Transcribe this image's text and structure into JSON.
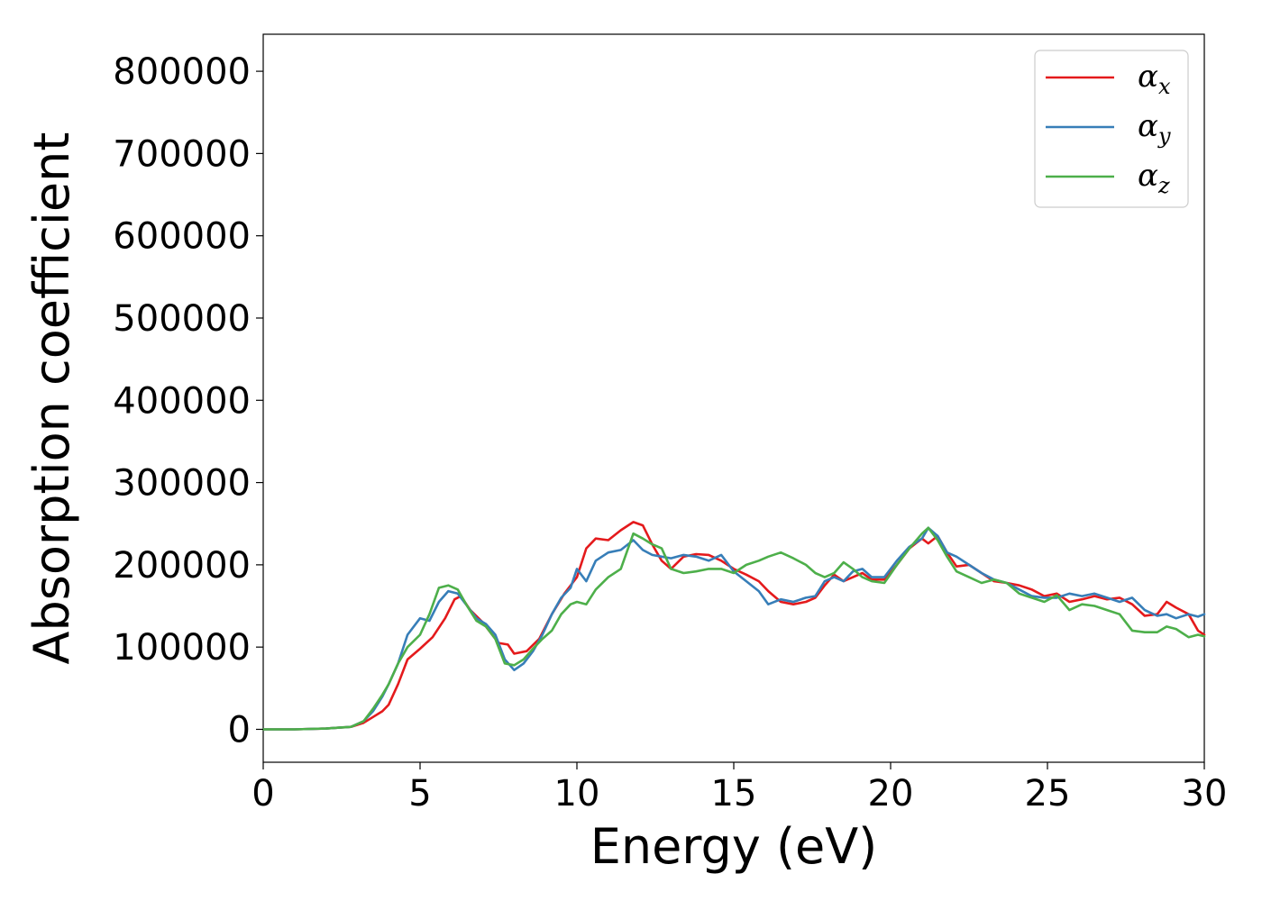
{
  "chart_data": {
    "type": "line",
    "title": "",
    "xlabel": "Energy (eV)",
    "ylabel": "Absorption coefficient",
    "xlim": [
      0,
      30
    ],
    "ylim": [
      -40000,
      845000
    ],
    "xticks": [
      "0",
      "5",
      "10",
      "15",
      "20",
      "25",
      "30"
    ],
    "yticks": [
      "0",
      "100000",
      "200000",
      "300000",
      "400000",
      "500000",
      "600000",
      "700000",
      "800000"
    ],
    "grid": false,
    "legend_position": "top-right",
    "series": [
      {
        "name_base": "α",
        "name_sub": "x",
        "color": "#e41a1c",
        "x": [
          0,
          1,
          2,
          2.8,
          3.2,
          3.5,
          3.8,
          4.0,
          4.3,
          4.6,
          5.0,
          5.4,
          5.8,
          6.1,
          6.3,
          6.6,
          7.0,
          7.5,
          7.8,
          8.0,
          8.4,
          8.8,
          9.2,
          9.6,
          10.0,
          10.3,
          10.6,
          11.0,
          11.4,
          11.8,
          12.1,
          12.4,
          12.7,
          13.0,
          13.4,
          13.8,
          14.2,
          14.6,
          15.0,
          15.4,
          15.8,
          16.1,
          16.5,
          16.9,
          17.3,
          17.6,
          17.9,
          18.2,
          18.5,
          18.8,
          19.1,
          19.4,
          19.8,
          20.2,
          20.6,
          21.0,
          21.2,
          21.5,
          21.8,
          22.1,
          22.5,
          22.9,
          23.3,
          23.7,
          24.1,
          24.5,
          24.9,
          25.3,
          25.7,
          26.1,
          26.5,
          26.9,
          27.3,
          27.7,
          28.1,
          28.5,
          28.8,
          29.1,
          29.5,
          29.8,
          30
        ],
        "y": [
          0,
          0,
          1000,
          3000,
          8000,
          15000,
          22000,
          30000,
          55000,
          85000,
          98000,
          112000,
          135000,
          158000,
          162000,
          145000,
          130000,
          105000,
          103000,
          92000,
          95000,
          110000,
          140000,
          165000,
          185000,
          220000,
          232000,
          230000,
          242000,
          252000,
          248000,
          225000,
          205000,
          195000,
          210000,
          213000,
          212000,
          205000,
          195000,
          188000,
          180000,
          168000,
          155000,
          152000,
          155000,
          160000,
          175000,
          188000,
          180000,
          185000,
          190000,
          182000,
          182000,
          200000,
          220000,
          232000,
          226000,
          235000,
          215000,
          198000,
          200000,
          190000,
          180000,
          178000,
          175000,
          170000,
          162000,
          165000,
          155000,
          158000,
          162000,
          158000,
          160000,
          152000,
          138000,
          140000,
          155000,
          148000,
          140000,
          120000,
          115000
        ]
      },
      {
        "name_base": "α",
        "name_sub": "y",
        "color": "#377eb8",
        "x": [
          0,
          1,
          2,
          2.8,
          3.2,
          3.5,
          3.8,
          4.0,
          4.3,
          4.6,
          5.0,
          5.3,
          5.6,
          5.9,
          6.2,
          6.5,
          6.8,
          7.1,
          7.4,
          7.7,
          8.0,
          8.3,
          8.6,
          8.9,
          9.2,
          9.5,
          9.8,
          10.0,
          10.3,
          10.6,
          11.0,
          11.4,
          11.8,
          12.1,
          12.4,
          12.7,
          13.0,
          13.4,
          13.8,
          14.2,
          14.6,
          15.0,
          15.4,
          15.8,
          16.1,
          16.5,
          16.9,
          17.3,
          17.6,
          17.9,
          18.2,
          18.5,
          18.8,
          19.1,
          19.4,
          19.8,
          20.2,
          20.6,
          21.0,
          21.2,
          21.5,
          21.8,
          22.1,
          22.5,
          22.9,
          23.3,
          23.7,
          24.1,
          24.5,
          24.9,
          25.3,
          25.7,
          26.1,
          26.5,
          26.9,
          27.3,
          27.7,
          28.1,
          28.5,
          28.8,
          29.1,
          29.5,
          29.8,
          30
        ],
        "y": [
          0,
          0,
          1000,
          3000,
          10000,
          22000,
          40000,
          55000,
          80000,
          115000,
          135000,
          132000,
          155000,
          168000,
          165000,
          150000,
          135000,
          128000,
          115000,
          85000,
          72000,
          80000,
          95000,
          115000,
          140000,
          160000,
          172000,
          195000,
          180000,
          205000,
          215000,
          218000,
          230000,
          218000,
          212000,
          210000,
          208000,
          212000,
          210000,
          205000,
          212000,
          192000,
          180000,
          168000,
          152000,
          158000,
          155000,
          160000,
          162000,
          180000,
          185000,
          180000,
          192000,
          195000,
          185000,
          185000,
          205000,
          222000,
          232000,
          245000,
          235000,
          215000,
          210000,
          200000,
          190000,
          182000,
          178000,
          170000,
          162000,
          160000,
          160000,
          165000,
          162000,
          165000,
          160000,
          155000,
          160000,
          145000,
          138000,
          140000,
          135000,
          140000,
          137000,
          140000
        ]
      },
      {
        "name_base": "α",
        "name_sub": "z",
        "color": "#4daf4a",
        "x": [
          0,
          1,
          2,
          2.8,
          3.2,
          3.5,
          3.8,
          4.0,
          4.3,
          4.6,
          5.0,
          5.3,
          5.6,
          5.9,
          6.2,
          6.5,
          6.8,
          7.1,
          7.4,
          7.7,
          8.0,
          8.3,
          8.6,
          8.9,
          9.2,
          9.5,
          9.8,
          10.0,
          10.3,
          10.6,
          11.0,
          11.4,
          11.8,
          12.1,
          12.4,
          12.7,
          13.0,
          13.4,
          13.8,
          14.2,
          14.6,
          15.0,
          15.4,
          15.8,
          16.1,
          16.5,
          16.9,
          17.3,
          17.6,
          17.9,
          18.2,
          18.5,
          18.8,
          19.1,
          19.4,
          19.8,
          20.2,
          20.6,
          21.0,
          21.2,
          21.5,
          21.8,
          22.1,
          22.5,
          22.9,
          23.3,
          23.7,
          24.1,
          24.5,
          24.9,
          25.3,
          25.7,
          26.1,
          26.5,
          26.9,
          27.3,
          27.7,
          28.1,
          28.5,
          28.8,
          29.1,
          29.5,
          29.8,
          30
        ],
        "y": [
          0,
          0,
          1000,
          3000,
          10000,
          25000,
          42000,
          55000,
          80000,
          100000,
          115000,
          140000,
          172000,
          175000,
          170000,
          150000,
          132000,
          125000,
          110000,
          80000,
          78000,
          85000,
          98000,
          110000,
          120000,
          140000,
          152000,
          155000,
          152000,
          170000,
          185000,
          195000,
          238000,
          232000,
          225000,
          220000,
          195000,
          190000,
          192000,
          195000,
          195000,
          190000,
          200000,
          205000,
          210000,
          215000,
          208000,
          200000,
          190000,
          185000,
          190000,
          203000,
          195000,
          185000,
          180000,
          178000,
          200000,
          220000,
          238000,
          245000,
          230000,
          210000,
          192000,
          185000,
          178000,
          182000,
          178000,
          165000,
          160000,
          155000,
          163000,
          145000,
          152000,
          150000,
          145000,
          140000,
          120000,
          118000,
          118000,
          125000,
          122000,
          112000,
          115000,
          113000
        ]
      }
    ]
  }
}
